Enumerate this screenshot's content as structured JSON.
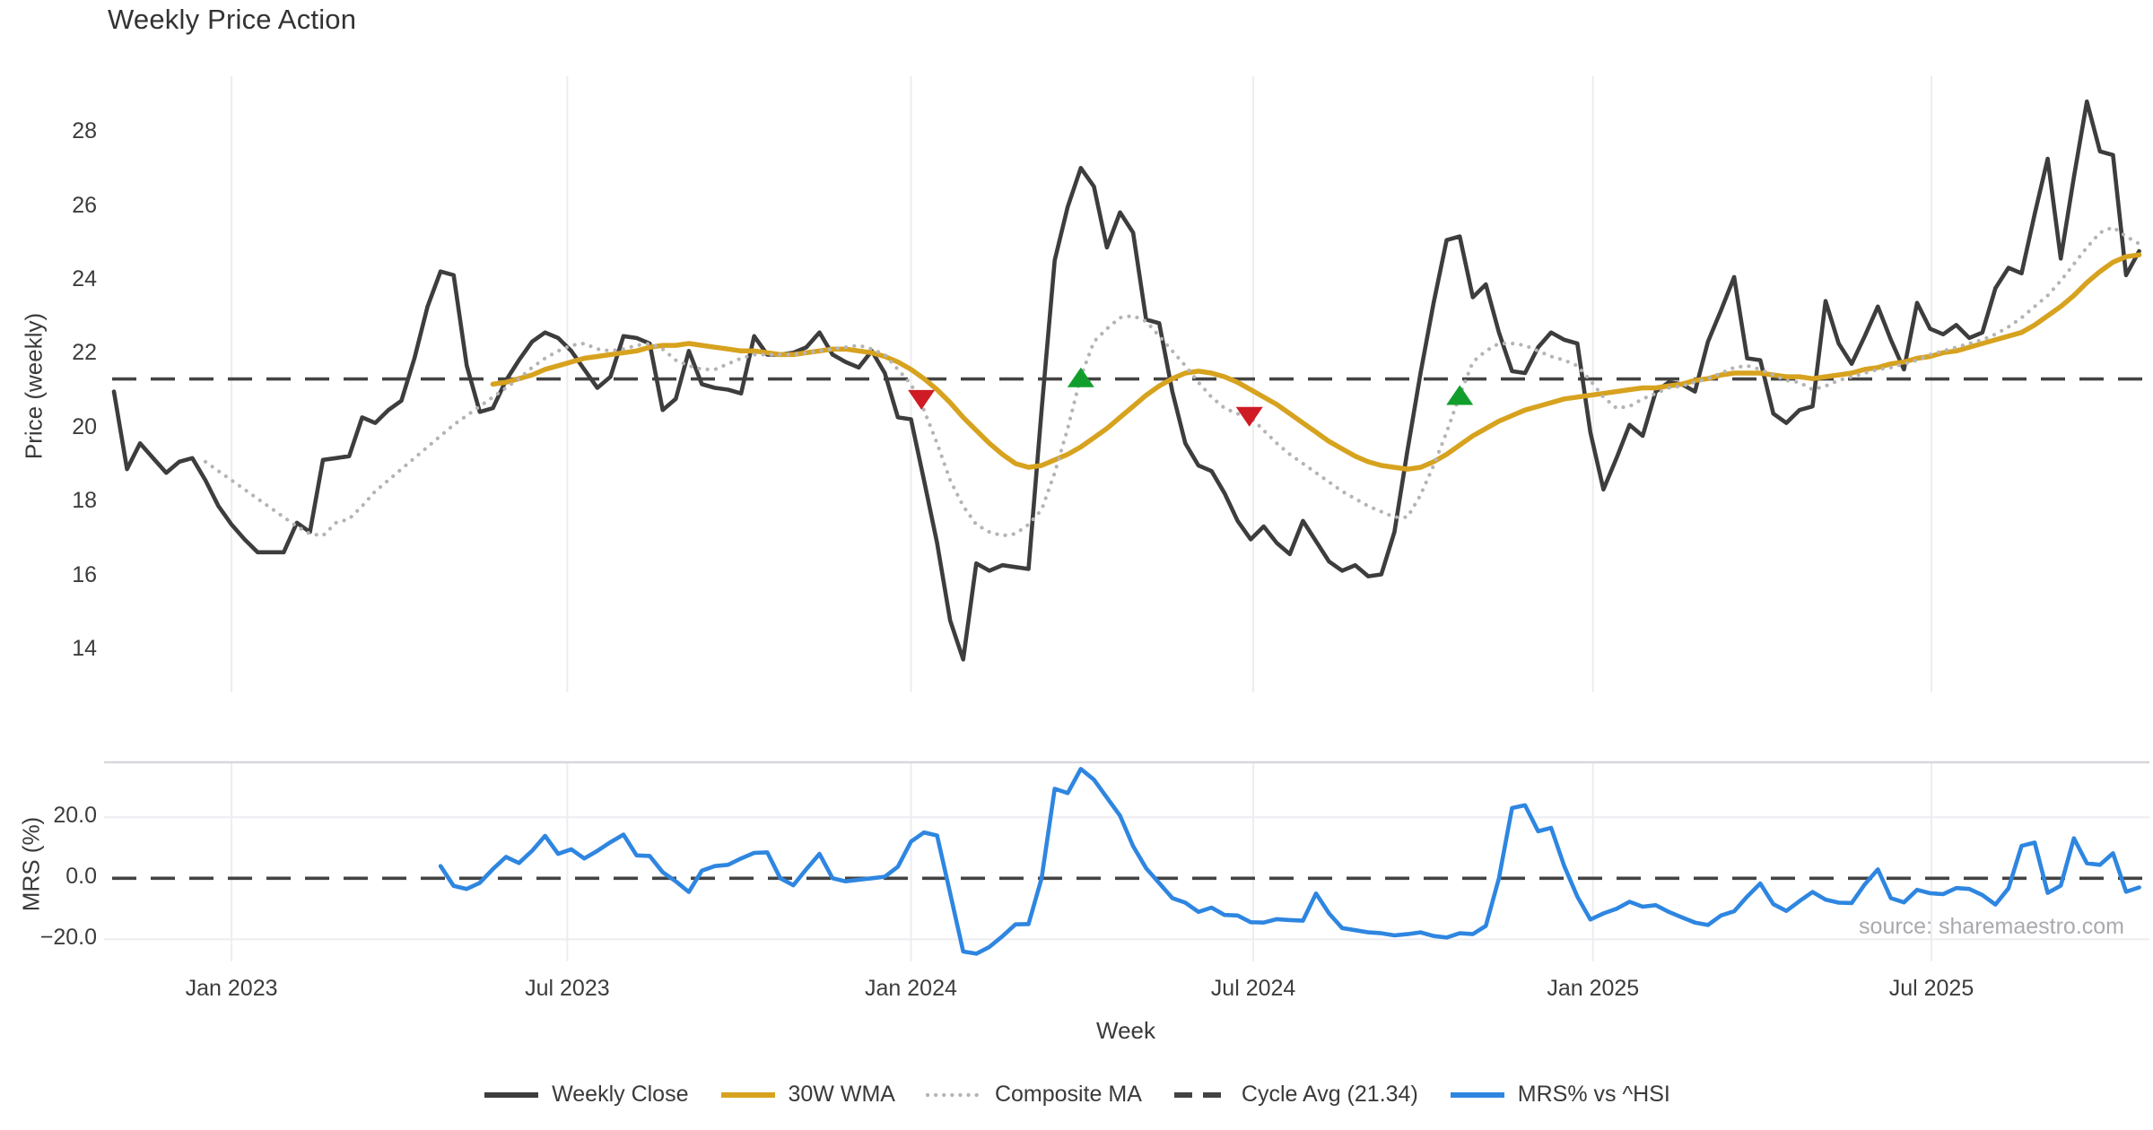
{
  "header": {
    "title": "Weekly Price Action"
  },
  "source_note": "source: sharemaestro.com",
  "colors": {
    "close": "#3d3d3d",
    "wma": "#d7a21e",
    "composite": "#b4b4b8",
    "cycle": "#434343",
    "mrs": "#2e86e0",
    "grid": "#ededf1",
    "spine": "#d7d7dd",
    "buy": "#129e2c",
    "sell": "#cf1b24",
    "text": "#3a3a3a"
  },
  "chart_data": {
    "type": "line",
    "title": "Weekly Price Action",
    "x_axis": {
      "label": "Week",
      "tick_labels": [
        "Jan 2023",
        "Jul 2023",
        "Jan 2024",
        "Jul 2024",
        "Jan 2025",
        "Jul 2025"
      ],
      "tick_weeks": [
        9.0,
        34.7,
        61.0,
        87.2,
        113.2,
        139.1
      ],
      "weeks_total": 156
    },
    "panels": [
      {
        "name": "price",
        "ylabel": "Price (weekly)",
        "ytick_values": [
          14,
          16,
          18,
          20,
          22,
          24,
          26,
          28
        ],
        "ytick_labels": [
          "14",
          "16",
          "18",
          "20",
          "22",
          "24",
          "26",
          "28"
        ],
        "ylim": [
          12.9,
          29.5
        ],
        "grid": "vertical"
      },
      {
        "name": "mrs",
        "ylabel": "MRS (%)",
        "ytick_values": [
          20,
          0,
          -20
        ],
        "ytick_labels": [
          "20.0",
          "0.0",
          "−20.0"
        ],
        "ylim": [
          -27,
          38
        ],
        "grid": "both"
      }
    ],
    "cycle_avg": 21.34,
    "series": [
      {
        "name": "Weekly Close",
        "panel": "price",
        "style": "solid",
        "color_key": "close",
        "start_week": 0,
        "values": [
          21.0,
          18.9,
          19.6,
          19.2,
          18.8,
          19.1,
          19.2,
          18.6,
          17.9,
          17.4,
          17.0,
          16.65,
          16.65,
          16.65,
          17.45,
          17.2,
          19.15,
          19.2,
          19.25,
          20.3,
          20.15,
          20.5,
          20.75,
          21.9,
          23.3,
          24.25,
          24.15,
          21.7,
          20.45,
          20.55,
          21.3,
          21.85,
          22.35,
          22.6,
          22.45,
          22.1,
          21.6,
          21.1,
          21.4,
          22.5,
          22.45,
          22.3,
          20.5,
          20.8,
          22.1,
          21.2,
          21.1,
          21.05,
          20.95,
          22.5,
          22.0,
          22.0,
          22.05,
          22.2,
          22.6,
          22.0,
          21.8,
          21.65,
          22.1,
          21.5,
          20.3,
          20.25,
          18.6,
          16.9,
          14.8,
          13.75,
          16.35,
          16.15,
          16.3,
          16.25,
          16.2,
          20.5,
          24.55,
          26.0,
          27.05,
          26.55,
          24.9,
          25.85,
          25.3,
          22.95,
          22.85,
          21.0,
          19.6,
          19.0,
          18.85,
          18.25,
          17.5,
          17.0,
          17.35,
          16.9,
          16.6,
          17.5,
          16.95,
          16.4,
          16.15,
          16.3,
          16.0,
          16.05,
          17.2,
          19.4,
          21.5,
          23.4,
          25.1,
          25.2,
          23.55,
          23.9,
          22.6,
          21.55,
          21.5,
          22.2,
          22.6,
          22.4,
          22.3,
          19.9,
          18.35,
          19.2,
          20.1,
          19.8,
          21.0,
          21.25,
          21.2,
          21.0,
          22.35,
          23.2,
          24.1,
          21.9,
          21.85,
          20.4,
          20.15,
          20.5,
          20.6,
          23.45,
          22.3,
          21.75,
          22.5,
          23.3,
          22.4,
          21.6,
          23.4,
          22.7,
          22.55,
          22.8,
          22.45,
          22.6,
          23.8,
          24.35,
          24.2,
          25.8,
          27.3,
          24.6,
          26.8,
          28.85,
          27.5,
          27.4,
          24.15,
          24.8
        ]
      },
      {
        "name": "30W WMA",
        "panel": "price",
        "style": "solid",
        "color_key": "wma",
        "start_week": 29,
        "values": [
          21.2,
          21.25,
          21.35,
          21.45,
          21.6,
          21.7,
          21.8,
          21.9,
          21.95,
          22.0,
          22.05,
          22.1,
          22.2,
          22.25,
          22.25,
          22.3,
          22.25,
          22.2,
          22.15,
          22.1,
          22.1,
          22.05,
          22.0,
          22.0,
          22.05,
          22.1,
          22.15,
          22.15,
          22.1,
          22.05,
          21.95,
          21.8,
          21.6,
          21.35,
          21.05,
          20.7,
          20.3,
          19.95,
          19.6,
          19.3,
          19.05,
          18.95,
          19.0,
          19.15,
          19.3,
          19.5,
          19.75,
          20.0,
          20.3,
          20.6,
          20.9,
          21.15,
          21.35,
          21.5,
          21.55,
          21.5,
          21.4,
          21.25,
          21.05,
          20.85,
          20.65,
          20.4,
          20.15,
          19.9,
          19.65,
          19.45,
          19.25,
          19.1,
          19.0,
          18.95,
          18.9,
          18.95,
          19.1,
          19.3,
          19.55,
          19.8,
          20.0,
          20.2,
          20.35,
          20.5,
          20.6,
          20.7,
          20.8,
          20.85,
          20.9,
          20.95,
          21.0,
          21.05,
          21.1,
          21.1,
          21.15,
          21.2,
          21.3,
          21.35,
          21.45,
          21.5,
          21.5,
          21.5,
          21.45,
          21.4,
          21.4,
          21.35,
          21.4,
          21.45,
          21.5,
          21.6,
          21.65,
          21.75,
          21.8,
          21.9,
          21.95,
          22.05,
          22.1,
          22.2,
          22.3,
          22.4,
          22.5,
          22.6,
          22.8,
          23.05,
          23.3,
          23.6,
          23.95,
          24.25,
          24.5,
          24.65,
          24.7
        ]
      },
      {
        "name": "Composite MA",
        "panel": "price",
        "style": "dotted",
        "color_key": "composite",
        "start_week": 7,
        "values": [
          19.1,
          18.85,
          18.6,
          18.35,
          18.1,
          17.85,
          17.6,
          17.35,
          17.15,
          17.1,
          17.45,
          17.55,
          17.9,
          18.3,
          18.6,
          18.9,
          19.2,
          19.5,
          19.8,
          20.1,
          20.35,
          20.6,
          20.85,
          21.1,
          21.35,
          21.65,
          21.9,
          22.1,
          22.25,
          22.3,
          22.15,
          22.1,
          22.15,
          22.25,
          22.3,
          22.15,
          21.85,
          21.7,
          21.6,
          21.6,
          21.75,
          21.9,
          22.0,
          22.0,
          22.0,
          22.0,
          22.05,
          22.1,
          22.15,
          22.2,
          22.25,
          22.15,
          22.0,
          21.6,
          21.2,
          20.5,
          19.6,
          18.6,
          17.9,
          17.4,
          17.2,
          17.1,
          17.15,
          17.4,
          17.8,
          18.8,
          20.0,
          21.4,
          22.35,
          22.7,
          23.0,
          23.05,
          22.9,
          22.5,
          22.1,
          21.7,
          21.25,
          20.85,
          20.55,
          20.4,
          20.3,
          19.95,
          19.6,
          19.3,
          19.05,
          18.8,
          18.55,
          18.3,
          18.1,
          17.9,
          17.75,
          17.6,
          17.6,
          18.2,
          19.0,
          19.9,
          20.9,
          21.8,
          22.1,
          22.3,
          22.3,
          22.25,
          22.1,
          21.95,
          21.85,
          21.7,
          21.3,
          20.85,
          20.55,
          20.6,
          20.8,
          20.95,
          21.1,
          21.15,
          21.25,
          21.35,
          21.5,
          21.65,
          21.7,
          21.6,
          21.45,
          21.3,
          21.25,
          21.05,
          21.15,
          21.3,
          21.4,
          21.5,
          21.6,
          21.65,
          21.75,
          21.85,
          22.0,
          22.1,
          22.2,
          22.3,
          22.4,
          22.55,
          22.75,
          23.0,
          23.3,
          23.6,
          24.0,
          24.45,
          24.9,
          25.3,
          25.45,
          25.2,
          25.0
        ]
      },
      {
        "name": "MRS% vs ^HSI",
        "panel": "mrs",
        "style": "solid",
        "color_key": "mrs",
        "start_week": 25,
        "values": [
          4.0,
          -2.5,
          -3.5,
          -1.5,
          3.0,
          7.0,
          5.0,
          9.0,
          13.9,
          8.0,
          9.5,
          6.5,
          9.0,
          11.8,
          14.3,
          7.5,
          7.3,
          2.0,
          -1.0,
          -4.5,
          2.5,
          4.0,
          4.4,
          6.5,
          8.3,
          8.5,
          0.0,
          -2.3,
          3.0,
          8.0,
          0.0,
          -1.0,
          -0.5,
          0.0,
          0.5,
          3.8,
          12.0,
          15.0,
          14.0,
          -5.0,
          -24.0,
          -24.7,
          -22.5,
          -19.0,
          -15.1,
          -15.0,
          0.0,
          29.3,
          27.9,
          35.8,
          32.3,
          26.4,
          20.5,
          10.5,
          3.3,
          -1.6,
          -6.5,
          -8.0,
          -11.0,
          -9.6,
          -12.0,
          -12.2,
          -14.4,
          -14.5,
          -13.4,
          -13.7,
          -13.9,
          -5.0,
          -11.5,
          -16.3,
          -17.0,
          -17.7,
          -18.0,
          -18.7,
          -18.3,
          -17.7,
          -18.9,
          -19.4,
          -18.0,
          -18.3,
          -15.6,
          0.0,
          23.0,
          23.9,
          15.4,
          16.5,
          4.0,
          -6.0,
          -13.5,
          -11.5,
          -10.0,
          -7.7,
          -9.3,
          -8.8,
          -11.0,
          -12.8,
          -14.5,
          -15.3,
          -12.2,
          -10.8,
          -6.0,
          -1.7,
          -8.5,
          -10.7,
          -7.5,
          -4.5,
          -7.0,
          -8.0,
          -8.1,
          -2.0,
          2.9,
          -6.5,
          -7.9,
          -3.8,
          -4.9,
          -5.2,
          -3.2,
          -3.5,
          -5.5,
          -8.6,
          -3.3,
          10.6,
          11.7,
          -4.8,
          -2.4,
          13.1,
          4.9,
          4.4,
          8.2,
          -4.4,
          -3.0
        ]
      }
    ],
    "markers": [
      {
        "kind": "sell",
        "week": 61.8,
        "value": 20.8
      },
      {
        "kind": "buy",
        "week": 74.0,
        "value": 21.36
      },
      {
        "kind": "sell",
        "week": 86.9,
        "value": 20.34
      },
      {
        "kind": "buy",
        "week": 103.0,
        "value": 20.88
      }
    ]
  },
  "legend": {
    "items": [
      {
        "label": "Weekly Close",
        "color_key": "close",
        "style": "solid"
      },
      {
        "label": "30W WMA",
        "color_key": "wma",
        "style": "solid"
      },
      {
        "label": "Composite MA",
        "color_key": "composite",
        "style": "dotted"
      },
      {
        "label": "Cycle Avg (21.34)",
        "color_key": "cycle",
        "style": "dashed"
      },
      {
        "label": "MRS% vs ^HSI",
        "color_key": "mrs",
        "style": "solid"
      }
    ]
  }
}
